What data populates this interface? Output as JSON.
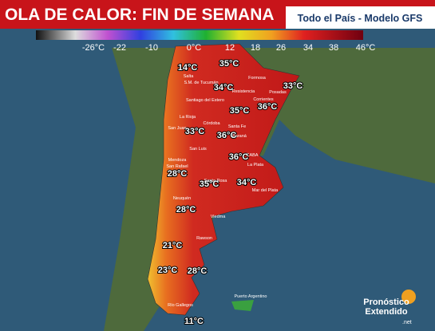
{
  "header": {
    "title": "OLA DE CALOR: FIN DE SEMANA",
    "subtitle": "Todo el País - Modelo GFS"
  },
  "scale": {
    "labels": [
      "-26°C",
      "-22",
      "-10",
      "0°C",
      "12",
      "18",
      "26",
      "34",
      "38",
      "46°C"
    ]
  },
  "temperatures": [
    "14°C",
    "35°C",
    "34°C",
    "33°C",
    "36°C",
    "35°C",
    "33°C",
    "36°C",
    "36°C",
    "28°C",
    "35°C",
    "34°C",
    "28°C",
    "21°C",
    "23°C",
    "28°C",
    "11°C"
  ],
  "cities": [
    "Salta",
    "S.M. de Tucumán",
    "Formosa",
    "Resistencia",
    "Posadas",
    "Corrientes",
    "Santiago del Estero",
    "La Rioja",
    "Córdoba",
    "Santa Fe",
    "Paraná",
    "San Juan",
    "San Luis",
    "Mendoza",
    "San Rafael",
    "Santa Rosa",
    "CABA",
    "La Plata",
    "Mar del Plata",
    "Neuquén",
    "Viedma",
    "Rawson",
    "Río Gallegos",
    "Puerto Argentino"
  ],
  "logo": {
    "line1": "Pronóstico",
    "line2": "Extendido",
    "suffix": ".net"
  }
}
